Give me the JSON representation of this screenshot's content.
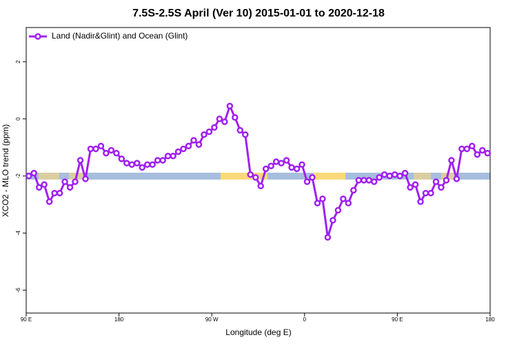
{
  "chart_data": {
    "type": "line",
    "title": "7.5S-2.5S April (Ver 10)   2015-01-01 to 2020-12-18",
    "x_label": "Longitude (deg E)",
    "y_label": "XCO2 - MLO trend (ppm)",
    "xlim": [
      90,
      540
    ],
    "ylim": [
      -6.8,
      3.2
    ],
    "xticks": [
      {
        "value": 90,
        "label": "90 E"
      },
      180,
      {
        "value": 270,
        "label": "90 W"
      },
      {
        "value": 360,
        "label": "0"
      },
      {
        "value": 450,
        "label": "90 E"
      },
      {
        "value": 540,
        "label": "180"
      }
    ],
    "yticks": [
      -6,
      -4,
      -2,
      0,
      2
    ],
    "legend": "top-left",
    "x": [
      92.5,
      97.5,
      102.5,
      107.5,
      112.5,
      117.5,
      122.5,
      127.5,
      132.5,
      137.5,
      142.5,
      147.5,
      152.5,
      157.5,
      162.5,
      167.5,
      172.5,
      177.5,
      182.5,
      187.5,
      192.5,
      197.5,
      202.5,
      207.5,
      212.5,
      217.5,
      222.5,
      227.5,
      232.5,
      237.5,
      242.5,
      247.5,
      252.5,
      257.5,
      262.5,
      267.5,
      272.5,
      277.5,
      282.5,
      287.5,
      292.5,
      297.5,
      302.5,
      307.5,
      312.5,
      317.5,
      322.5,
      327.5,
      332.5,
      337.5,
      342.5,
      347.5,
      352.5,
      357.5,
      362.5,
      367.5,
      372.5,
      377.5,
      382.5,
      387.5,
      392.5,
      397.5,
      402.5,
      407.5,
      412.5,
      417.5,
      422.5,
      427.5,
      432.5,
      437.5,
      442.5,
      447.5,
      452.5,
      457.5,
      462.5,
      467.5,
      472.5,
      477.5,
      482.5,
      487.5,
      492.5,
      497.5,
      502.5,
      507.5,
      512.5,
      517.5,
      522.5,
      527.5,
      532.5,
      537.5
    ],
    "series": [
      {
        "name": "Land (Nadir&Glint) and Ocean (Glint)",
        "color": "#a020f0",
        "values": [
          -2.0,
          -1.9,
          -2.4,
          -2.3,
          -2.9,
          -2.6,
          -2.6,
          -2.2,
          -2.4,
          -2.2,
          -1.45,
          -2.1,
          -1.05,
          -1.05,
          -0.95,
          -1.2,
          -1.1,
          -1.2,
          -1.4,
          -1.55,
          -1.6,
          -1.55,
          -1.7,
          -1.6,
          -1.6,
          -1.45,
          -1.45,
          -1.3,
          -1.3,
          -1.15,
          -1.05,
          -0.95,
          -0.75,
          -0.9,
          -0.55,
          -0.45,
          -0.3,
          0.0,
          -0.1,
          0.45,
          0.05,
          -0.4,
          -0.55,
          -1.95,
          -2.05,
          -2.35,
          -1.75,
          -1.65,
          -1.5,
          -1.55,
          -1.45,
          -1.7,
          -1.75,
          -1.6,
          -2.2,
          -2.05,
          -2.95,
          -2.8,
          -4.15,
          -3.55,
          -3.2,
          -2.8,
          -2.95,
          -2.5,
          -2.15,
          -2.15,
          -2.15,
          -2.2,
          -2.05,
          -1.95,
          -2.0,
          -1.95,
          -2.0,
          -1.9,
          -2.4,
          -2.3,
          -2.9,
          -2.6,
          -2.6,
          -2.2,
          -2.4,
          -2.15,
          -1.45,
          -2.1,
          -1.05,
          -1.05,
          -0.95,
          -1.25,
          -1.1,
          -1.2
        ]
      }
    ]
  }
}
